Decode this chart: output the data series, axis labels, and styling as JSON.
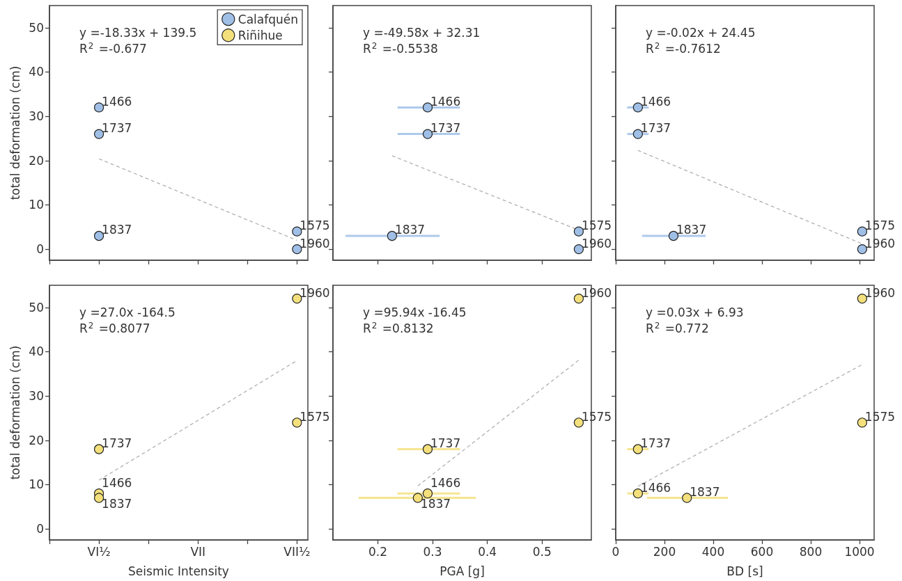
{
  "chart_data": [
    {
      "type": "scatter",
      "marker": "circle",
      "legend": "top right",
      "tick_labels": "y",
      "ylabel": "total deformation (cm)",
      "categories": [
        null,
        "VI½",
        null,
        "VII",
        null,
        "VII½"
      ],
      "ylim": [
        -2.5,
        55
      ],
      "yticks": [
        0,
        10,
        20,
        30,
        40,
        50
      ],
      "annotations": [
        "y =-18.33x + 139.5",
        "R$^{2}$ =-0.677",
        {
          "text": "1466",
          "x": "VI½",
          "y": 32
        },
        {
          "text": "1737",
          "x": "VI½",
          "y": 26
        },
        {
          "text": "1837",
          "x": "VI½",
          "y": 3
        },
        {
          "text": "1575",
          "x": "VII½",
          "y": 4
        },
        {
          "text": "1960",
          "x": "VII½",
          "y": 0
        }
      ],
      "series": [
        {
          "name": "Calafquén",
          "color": "#a0bfe6",
          "x": [
            "VI½",
            "VI½",
            "VI½",
            "VII½",
            "VII½"
          ],
          "values": [
            32,
            26,
            3,
            4,
            0
          ]
        },
        {
          "name": "Riñihue",
          "color": "#f3e07c",
          "values": [
            null,
            null,
            null,
            null,
            null,
            null
          ]
        },
        {
          "type": "line",
          "color": "#aaaaaa",
          "line_style": "dashed",
          "marker": "none",
          "x": [
            "VI½",
            "VII½"
          ],
          "values": [
            20.4,
            2.0
          ]
        }
      ]
    },
    {
      "type": "scatter",
      "marker": "circle",
      "tick_labels": false,
      "xlim": [
        0.118,
        0.59
      ],
      "xticks": [
        0.2,
        0.3,
        0.4,
        0.5
      ],
      "ylim": [
        -2.5,
        55
      ],
      "yticks": [
        0,
        10,
        20,
        30,
        40,
        50
      ],
      "annotations": [
        "y =-49.58x + 32.31",
        "R$^{2}$ =-0.5538",
        {
          "text": "1466",
          "x": 0.291,
          "y": 32
        },
        {
          "text": "1737",
          "x": 0.291,
          "y": 26
        },
        {
          "text": "1837",
          "x": 0.226,
          "y": 3
        },
        {
          "text": "1575",
          "x": 0.567,
          "y": 4
        },
        {
          "text": "1960",
          "x": 0.567,
          "y": 0
        }
      ],
      "series": [
        {
          "color": "#a0bfe6",
          "x": [
            0.291,
            0.291,
            0.226,
            0.567,
            0.567
          ],
          "values": [
            32,
            26,
            3,
            4,
            0
          ],
          "xerrors": [
            [
              0.236,
              0.35
            ],
            [
              0.236,
              0.35
            ],
            [
              0.141,
              0.313
            ],
            null,
            null
          ]
        },
        {
          "type": "line",
          "color": "#aaaaaa",
          "line_style": "dashed",
          "marker": "none",
          "x": [
            0.226,
            0.567
          ],
          "values": [
            21.1,
            4.3
          ]
        }
      ]
    },
    {
      "type": "scatter",
      "marker": "circle",
      "tick_labels": false,
      "xlim": [
        0,
        1060
      ],
      "xticks": [
        0,
        200,
        400,
        600,
        800,
        1000
      ],
      "ylim": [
        -2.5,
        55
      ],
      "yticks": [
        0,
        10,
        20,
        30,
        40,
        50
      ],
      "annotations": [
        "y =-0.02x + 24.45",
        "R$^{2}$ =-0.7612",
        {
          "text": "1466",
          "x": 91,
          "y": 32
        },
        {
          "text": "1737",
          "x": 91,
          "y": 26
        },
        {
          "text": "1837",
          "x": 237,
          "y": 3
        },
        {
          "text": "1575",
          "x": 1011,
          "y": 4
        },
        {
          "text": "1960",
          "x": 1011,
          "y": 0
        }
      ],
      "series": [
        {
          "color": "#a0bfe6",
          "x": [
            91,
            91,
            237,
            1011,
            1011
          ],
          "values": [
            32,
            26,
            3,
            4,
            0
          ],
          "xerrors": [
            [
              47,
              135
            ],
            [
              47,
              135
            ],
            [
              108,
              369
            ],
            null,
            null
          ]
        },
        {
          "type": "line",
          "color": "#aaaaaa",
          "line_style": "dashed",
          "marker": "none",
          "x": [
            91,
            1011
          ],
          "values": [
            22.3,
            1.2
          ]
        }
      ]
    },
    {
      "type": "scatter",
      "marker": "circle",
      "xlabel": "Seismic Intensity",
      "ylabel": "total deformation (cm)",
      "categories": [
        null,
        "VI½",
        null,
        "VII",
        null,
        "VII½"
      ],
      "ylim": [
        -2.5,
        55
      ],
      "yticks": [
        0,
        10,
        20,
        30,
        40,
        50
      ],
      "annotations": [
        "y =27.0x -164.5",
        "R$^{2}$ =0.8077",
        {
          "text": "1960",
          "x": "VII½",
          "y": 52
        },
        {
          "text": "1575",
          "x": "VII½",
          "y": 24
        },
        {
          "text": "1737",
          "x": "VI½",
          "y": 18
        },
        {
          "text": "1466",
          "x": "VI½",
          "y": 8
        },
        {
          "text": "1837",
          "x": "VI½",
          "y": 7
        }
      ],
      "series": [
        {
          "color": "#f3e07c",
          "x": [
            "VII½",
            "VII½",
            "VI½",
            "VI½",
            "VI½"
          ],
          "values": [
            52,
            24,
            18,
            8,
            7
          ]
        },
        {
          "type": "line",
          "color": "#aaaaaa",
          "line_style": "dashed",
          "marker": "none",
          "x": [
            "VI½",
            "VII½"
          ],
          "values": [
            11.0,
            38.0
          ]
        }
      ]
    },
    {
      "type": "scatter",
      "marker": "circle",
      "tick_labels": "x",
      "xlabel": "PGA [g]",
      "xlim": [
        0.118,
        0.59
      ],
      "xticks": [
        0.2,
        0.3,
        0.4,
        0.5
      ],
      "ylim": [
        -2.5,
        55
      ],
      "yticks": [
        0,
        10,
        20,
        30,
        40,
        50
      ],
      "annotations": [
        "y =95.94x -16.45",
        "R$^{2}$ =0.8132",
        {
          "text": "1960",
          "x": 0.567,
          "y": 52
        },
        {
          "text": "1575",
          "x": 0.567,
          "y": 24
        },
        {
          "text": "1737",
          "x": 0.291,
          "y": 18
        },
        {
          "text": "1466",
          "x": 0.291,
          "y": 8
        },
        {
          "text": "1837",
          "x": 0.273,
          "y": 7
        }
      ],
      "series": [
        {
          "color": "#f3e07c",
          "x": [
            0.567,
            0.567,
            0.291,
            0.291,
            0.273
          ],
          "values": [
            52,
            24,
            18,
            8,
            7
          ],
          "xerrors": [
            null,
            null,
            [
              0.236,
              0.35
            ],
            [
              0.236,
              0.35
            ],
            [
              0.165,
              0.379
            ]
          ]
        },
        {
          "type": "line",
          "color": "#aaaaaa",
          "line_style": "dashed",
          "marker": "none",
          "x": [
            0.273,
            0.567
          ],
          "values": [
            9.7,
            38.1
          ]
        }
      ]
    },
    {
      "type": "scatter",
      "marker": "circle",
      "tick_labels": "x",
      "xlabel": "BD [s]",
      "xlim": [
        0,
        1060
      ],
      "xticks": [
        0,
        200,
        400,
        600,
        800,
        1000
      ],
      "ylim": [
        -2.5,
        55
      ],
      "yticks": [
        0,
        10,
        20,
        30,
        40,
        50
      ],
      "annotations": [
        "y =0.03x + 6.93",
        "R$^{2}$ =0.772",
        {
          "text": "1960",
          "x": 1011,
          "y": 52
        },
        {
          "text": "1575",
          "x": 1011,
          "y": 24
        },
        {
          "text": "1737",
          "x": 91,
          "y": 18
        },
        {
          "text": "1466",
          "x": 91,
          "y": 8
        },
        {
          "text": "1837",
          "x": 292,
          "y": 7
        }
      ],
      "series": [
        {
          "color": "#f3e07c",
          "x": [
            1011,
            1011,
            91,
            91,
            292
          ],
          "values": [
            52,
            24,
            18,
            8,
            7
          ],
          "xerrors": [
            null,
            null,
            [
              47,
              135
            ],
            [
              47,
              135
            ],
            [
              128,
              460
            ]
          ]
        },
        {
          "type": "line",
          "color": "#aaaaaa",
          "line_style": "dashed",
          "marker": "none",
          "x": [
            91,
            1011
          ],
          "values": [
            9.6,
            37.1
          ]
        }
      ]
    }
  ]
}
